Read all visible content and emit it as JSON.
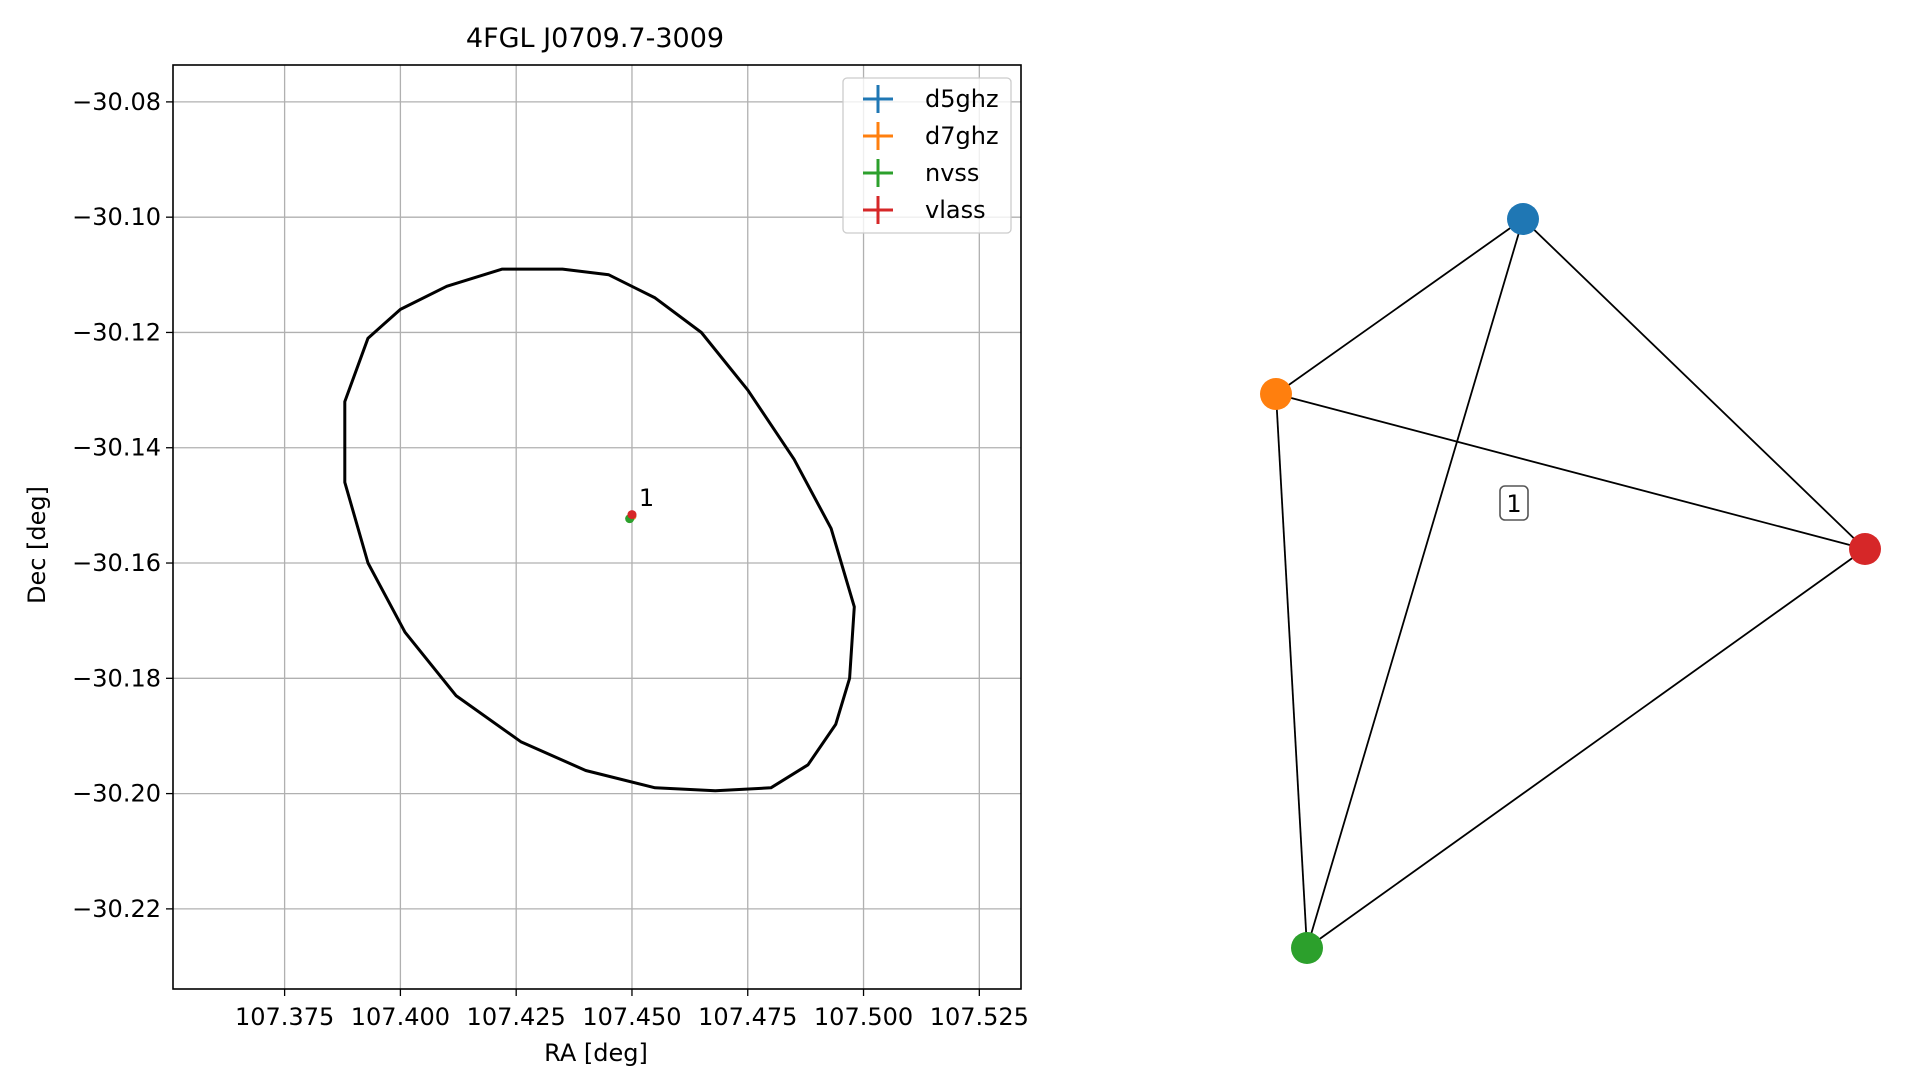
{
  "chart_data": [
    {
      "type": "scatter",
      "title": "4FGL J0709.7-3009",
      "xlabel": "RA [deg]",
      "ylabel": "Dec [deg]",
      "xlim": [
        107.3509,
        107.534
      ],
      "ylim": [
        -30.2339,
        -30.0736
      ],
      "grid": true,
      "x_ticks": [
        107.375,
        107.4,
        107.425,
        107.45,
        107.475,
        107.5,
        107.525
      ],
      "x_tick_labels": [
        "107.375",
        "107.400",
        "107.425",
        "107.450",
        "107.475",
        "107.500",
        "107.525"
      ],
      "y_ticks": [
        -30.08,
        -30.1,
        -30.12,
        -30.14,
        -30.16,
        -30.18,
        -30.2,
        -30.22
      ],
      "y_tick_labels": [
        "−30.08",
        "−30.10",
        "−30.12",
        "−30.14",
        "−30.16",
        "−30.18",
        "−30.20",
        "−30.22"
      ],
      "legend_position": "top-right",
      "series": [
        {
          "name": "d5ghz",
          "color": "#1f77b4",
          "points": [
            {
              "x": 107.45,
              "y": -30.1518
            }
          ]
        },
        {
          "name": "d7ghz",
          "color": "#ff7f0e",
          "points": [
            {
              "x": 107.45,
              "y": -30.1518
            }
          ]
        },
        {
          "name": "nvss",
          "color": "#2ca02c",
          "points": [
            {
              "x": 107.4495,
              "y": -30.1523
            }
          ]
        },
        {
          "name": "vlass",
          "color": "#d62728",
          "points": [
            {
              "x": 107.45,
              "y": -30.1516
            }
          ]
        }
      ],
      "annotations": [
        {
          "text": "1",
          "x": 107.4502,
          "y": -30.1508
        }
      ],
      "ellipse": {
        "center_ra": 107.4428,
        "center_dec": -30.1542,
        "color": "#000000",
        "outline": [
          [
            107.498,
            -30.1676
          ],
          [
            107.497,
            -30.18
          ],
          [
            107.494,
            -30.188
          ],
          [
            107.488,
            -30.195
          ],
          [
            107.48,
            -30.199
          ],
          [
            107.468,
            -30.1995
          ],
          [
            107.455,
            -30.199
          ],
          [
            107.44,
            -30.196
          ],
          [
            107.426,
            -30.191
          ],
          [
            107.412,
            -30.183
          ],
          [
            107.401,
            -30.172
          ],
          [
            107.393,
            -30.16
          ],
          [
            107.388,
            -30.146
          ],
          [
            107.388,
            -30.132
          ],
          [
            107.393,
            -30.121
          ],
          [
            107.4,
            -30.116
          ],
          [
            107.41,
            -30.112
          ],
          [
            107.422,
            -30.109
          ],
          [
            107.435,
            -30.109
          ],
          [
            107.445,
            -30.11
          ],
          [
            107.455,
            -30.114
          ],
          [
            107.465,
            -30.12
          ],
          [
            107.475,
            -30.13
          ],
          [
            107.485,
            -30.142
          ],
          [
            107.493,
            -30.154
          ]
        ]
      }
    },
    {
      "type": "network",
      "nodes": [
        {
          "id": "d5ghz",
          "color": "#1f77b4"
        },
        {
          "id": "d7ghz",
          "color": "#ff7f0e"
        },
        {
          "id": "nvss",
          "color": "#2ca02c"
        },
        {
          "id": "vlass",
          "color": "#d62728"
        }
      ],
      "edges": [
        [
          "d5ghz",
          "d7ghz"
        ],
        [
          "d5ghz",
          "nvss"
        ],
        [
          "d5ghz",
          "vlass"
        ],
        [
          "d7ghz",
          "nvss"
        ],
        [
          "d7ghz",
          "vlass"
        ],
        [
          "nvss",
          "vlass"
        ]
      ],
      "label": "1"
    }
  ]
}
